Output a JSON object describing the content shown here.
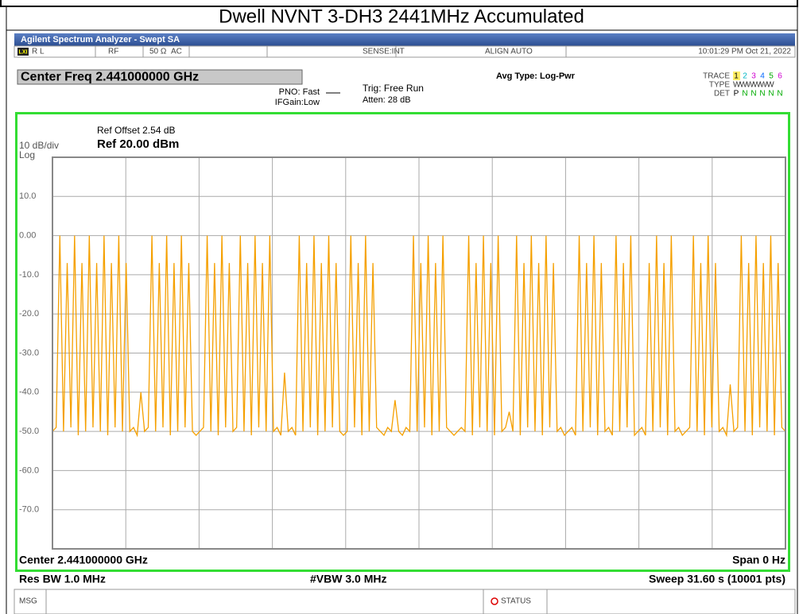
{
  "header": {
    "title": "Dwell NVNT 3-DH3 2441MHz Accumulated"
  },
  "analyzer": {
    "app_title": "Agilent Spectrum Analyzer - Swept SA",
    "status": {
      "lxi": "LXI",
      "rl": "R L",
      "rf": "RF",
      "impedance": "50 Ω",
      "coupling": "AC",
      "sense": "SENSE:INT",
      "align": "ALIGN AUTO",
      "time": "10:01:29 PM Oct 21, 2022"
    },
    "center_freq": "Center Freq 2.441000000 GHz",
    "pno": "PNO: Fast",
    "ifgain": "IFGain:Low",
    "trig": "Trig: Free Run",
    "atten": "Atten: 28 dB",
    "avg_type": "Avg Type: Log-Pwr",
    "trace_label": "TRACE",
    "trace_numbers": [
      "1",
      "2",
      "3",
      "4",
      "5",
      "6"
    ],
    "type_label": "TYPE",
    "type_value": "WWWWWW",
    "det_label": "DET",
    "det_values": [
      "P",
      "N",
      "N",
      "N",
      "N",
      "N"
    ]
  },
  "chart_data": {
    "type": "line",
    "ref_offset": "Ref Offset 2.54 dB",
    "ref_level": "Ref 20.00 dBm",
    "scale": "10 dB/div",
    "scale_type": "Log",
    "ylim": [
      -80,
      20
    ],
    "yticks": [
      {
        "value": 10,
        "label": "10.0"
      },
      {
        "value": 0,
        "label": "0.00"
      },
      {
        "value": -10,
        "label": "-10.0"
      },
      {
        "value": -20,
        "label": "-20.0"
      },
      {
        "value": -30,
        "label": "-30.0"
      },
      {
        "value": -40,
        "label": "-40.0"
      },
      {
        "value": -50,
        "label": "-50.0"
      },
      {
        "value": -60,
        "label": "-60.0"
      },
      {
        "value": -70,
        "label": "-70.0"
      }
    ],
    "grid": true,
    "series": [
      {
        "color": "#f5a000",
        "values": [
          -50,
          -49,
          0,
          -50,
          -7,
          -49,
          0,
          -51,
          -7,
          -50,
          0,
          -49,
          -7,
          -50,
          0,
          -51,
          -7,
          -49,
          0,
          -50,
          -7,
          -50,
          -49,
          -51,
          -40,
          -50,
          -49,
          0,
          -50,
          -7,
          -49,
          0,
          -51,
          -7,
          -50,
          0,
          -49,
          -7,
          -50,
          -51,
          -50,
          -49,
          0,
          -50,
          -7,
          -51,
          0,
          -49,
          -7,
          -50,
          -49,
          0,
          -50,
          -7,
          -51,
          0,
          -49,
          -7,
          -50,
          0,
          -50,
          -49,
          -51,
          -35,
          -50,
          -49,
          -51,
          0,
          -50,
          -7,
          -49,
          0,
          -51,
          -7,
          -50,
          0,
          -49,
          -7,
          -50,
          -51,
          -50,
          0,
          -49,
          -7,
          -51,
          0,
          -50,
          -7,
          -49,
          -50,
          -51,
          -49,
          -50,
          -42,
          -50,
          -51,
          -49,
          -50,
          0,
          -50,
          -7,
          -49,
          0,
          -51,
          -7,
          -50,
          0,
          -49,
          -50,
          -51,
          -50,
          -49,
          -50,
          0,
          -51,
          -7,
          -49,
          0,
          -50,
          -7,
          -51,
          0,
          -50,
          -49,
          -45,
          -50,
          0,
          -51,
          -7,
          -49,
          0,
          -50,
          -7,
          -51,
          0,
          -49,
          -7,
          -50,
          -49,
          -51,
          -50,
          -49,
          -51,
          0,
          -50,
          -7,
          -49,
          0,
          -51,
          -7,
          -50,
          -49,
          -51,
          0,
          -50,
          -7,
          -49,
          0,
          -51,
          -50,
          -49,
          -51,
          -7,
          -50,
          0,
          -49,
          -7,
          -51,
          0,
          -50,
          -49,
          -51,
          -50,
          -49,
          0,
          -50,
          -7,
          -51,
          0,
          -49,
          -7,
          -50,
          -49,
          -51,
          -38,
          -50,
          -49,
          0,
          -50,
          -7,
          -51,
          0,
          -49,
          -7,
          -50,
          0,
          -51,
          -7,
          -49,
          -50
        ]
      }
    ],
    "center": "Center 2.441000000 GHz",
    "span": "Span 0 Hz",
    "rbw": "Res BW 1.0 MHz",
    "vbw": "#VBW 3.0 MHz",
    "sweep": "Sweep  31.60 s (10001 pts)"
  },
  "footer": {
    "msg": "MSG",
    "status": "STATUS"
  }
}
